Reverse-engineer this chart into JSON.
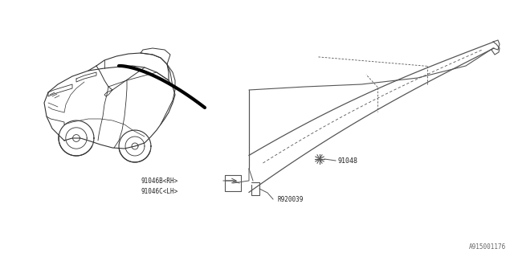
{
  "background_color": "#ffffff",
  "label_texts": {
    "91048": "91048",
    "91046B_RH": "91046B<RH>",
    "91046C_LH": "91046C<LH>",
    "R920039": "R920039",
    "diagram_id": "A915001176"
  },
  "car_color": "#333333",
  "arc_color": "#000000",
  "part_color": "#555555",
  "line_color": "#555555"
}
